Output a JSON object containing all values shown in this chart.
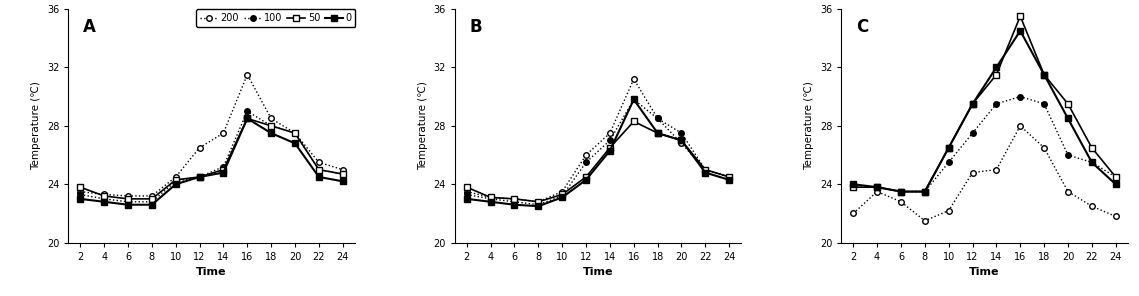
{
  "time": [
    2,
    4,
    6,
    8,
    10,
    12,
    14,
    16,
    18,
    20,
    22,
    24
  ],
  "panel_A": {
    "label": "A",
    "series_200": [
      23.5,
      23.3,
      23.2,
      23.2,
      24.5,
      26.5,
      27.5,
      31.5,
      28.5,
      27.5,
      25.5,
      25.0
    ],
    "series_100": [
      23.3,
      23.0,
      22.8,
      22.8,
      24.2,
      24.5,
      25.2,
      29.0,
      28.0,
      27.5,
      25.0,
      24.7
    ],
    "series_50": [
      23.8,
      23.2,
      23.0,
      23.0,
      24.3,
      24.5,
      25.0,
      28.5,
      28.0,
      27.5,
      25.0,
      24.7
    ],
    "series_0": [
      23.0,
      22.8,
      22.6,
      22.6,
      24.0,
      24.5,
      24.8,
      28.5,
      27.5,
      26.8,
      24.5,
      24.2
    ]
  },
  "panel_B": {
    "label": "B",
    "series_200": [
      23.5,
      23.1,
      23.0,
      22.8,
      23.5,
      26.0,
      27.5,
      31.2,
      28.5,
      26.8,
      25.0,
      24.5
    ],
    "series_100": [
      23.3,
      23.0,
      22.8,
      22.6,
      23.2,
      25.5,
      27.0,
      29.8,
      28.5,
      27.5,
      25.0,
      24.5
    ],
    "series_50": [
      23.8,
      23.1,
      23.0,
      22.8,
      23.3,
      24.5,
      26.5,
      28.3,
      27.5,
      27.0,
      25.0,
      24.5
    ],
    "series_0": [
      23.0,
      22.8,
      22.6,
      22.5,
      23.1,
      24.3,
      26.3,
      29.8,
      27.5,
      27.0,
      24.8,
      24.3
    ]
  },
  "panel_C": {
    "label": "C",
    "series_200": [
      22.0,
      23.5,
      22.8,
      21.5,
      22.2,
      24.8,
      25.0,
      28.0,
      26.5,
      23.5,
      22.5,
      21.8
    ],
    "series_100": [
      23.8,
      23.8,
      23.5,
      23.5,
      25.5,
      27.5,
      29.5,
      30.0,
      29.5,
      26.0,
      25.5,
      24.5
    ],
    "series_50": [
      23.8,
      23.8,
      23.5,
      23.5,
      26.5,
      29.5,
      31.5,
      35.5,
      31.5,
      29.5,
      26.5,
      24.5
    ],
    "series_0": [
      24.0,
      23.8,
      23.5,
      23.5,
      26.5,
      29.5,
      32.0,
      34.5,
      31.5,
      28.5,
      25.5,
      24.0
    ]
  },
  "ylim": [
    20,
    36
  ],
  "yticks": [
    20,
    24,
    28,
    32,
    36
  ],
  "xticks": [
    2,
    4,
    6,
    8,
    10,
    12,
    14,
    16,
    18,
    20,
    22,
    24
  ],
  "ylabel": "Temperature (℃)",
  "xlabel": "Time",
  "legend_labels": [
    "200",
    "100",
    "50",
    "0"
  ]
}
